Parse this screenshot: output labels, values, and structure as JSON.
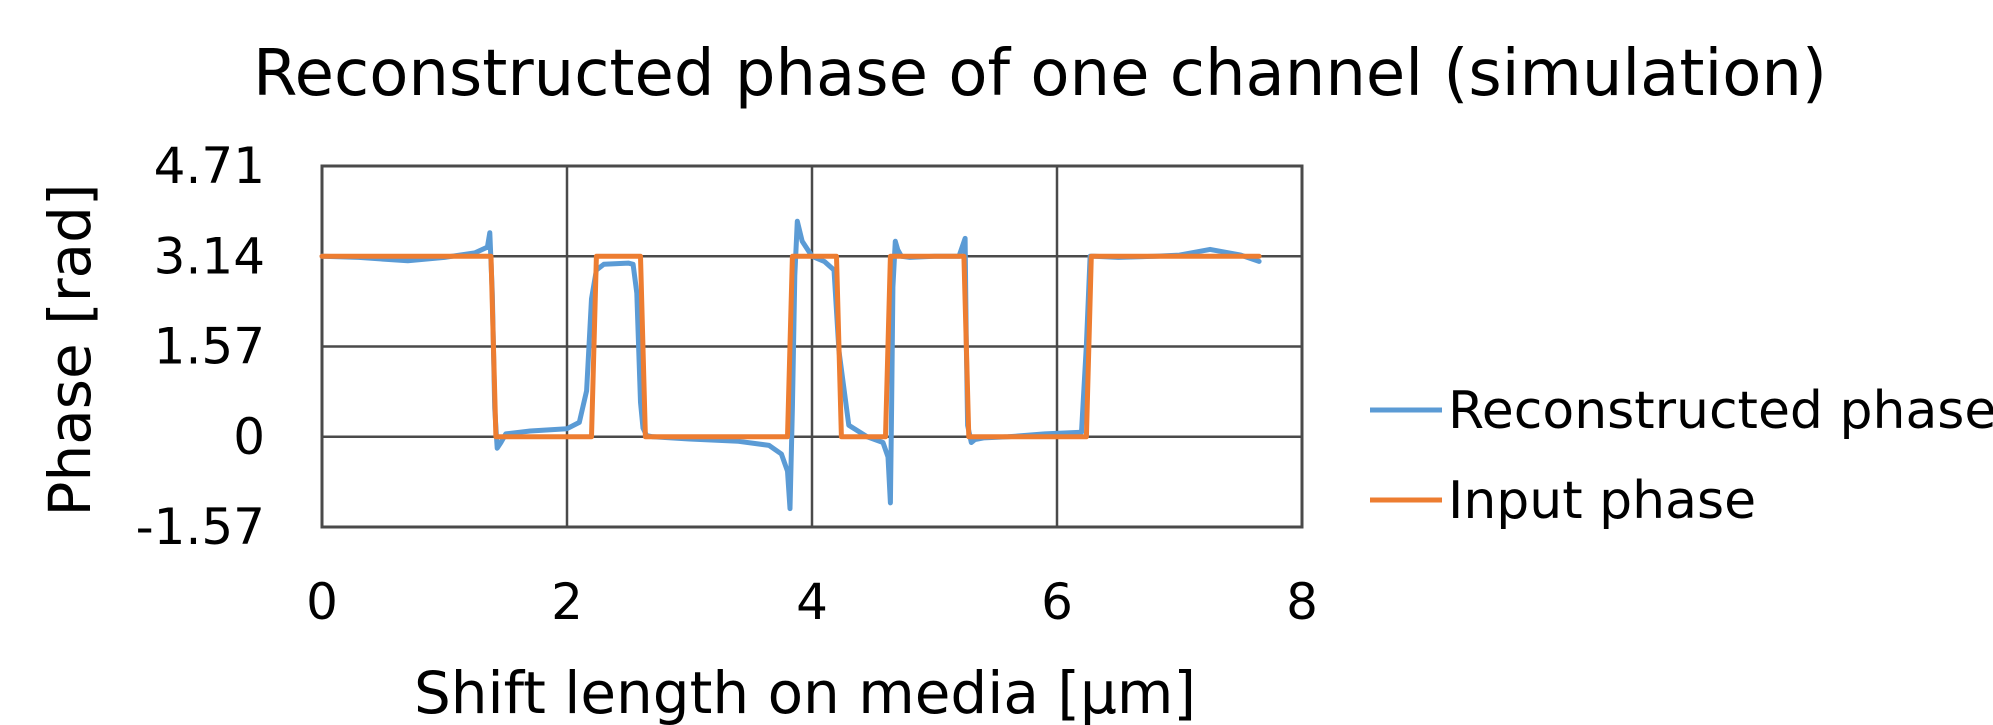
{
  "chart_data": {
    "type": "line",
    "title": "Reconstructed phase of one channel (simulation)",
    "xlabel": "Shift length on media [μm]",
    "ylabel": "Phase [rad]",
    "xlim": [
      0,
      8
    ],
    "ylim": [
      -1.57,
      4.71
    ],
    "x_ticks": [
      "0",
      "2",
      "4",
      "6",
      "8"
    ],
    "y_ticks": [
      "4.71",
      "3.14",
      "1.57",
      "0",
      "-1.57"
    ],
    "grid": true,
    "legend_position": "right",
    "series": [
      {
        "name": "Reconstructed phase",
        "color": "#5b9bd5",
        "x": [
          0,
          0.3,
          0.7,
          1.0,
          1.25,
          1.35,
          1.37,
          1.39,
          1.41,
          1.43,
          1.46,
          1.5,
          1.7,
          2.0,
          2.1,
          2.16,
          2.2,
          2.24,
          2.3,
          2.5,
          2.54,
          2.57,
          2.6,
          2.62,
          2.65,
          2.7,
          3.0,
          3.4,
          3.65,
          3.75,
          3.8,
          3.82,
          3.84,
          3.86,
          3.88,
          3.92,
          4.0,
          4.1,
          4.18,
          4.22,
          4.3,
          4.45,
          4.58,
          4.62,
          4.64,
          4.65,
          4.66,
          4.68,
          4.7,
          4.73,
          4.8,
          5.0,
          5.1,
          5.2,
          5.25,
          5.26,
          5.27,
          5.3,
          5.33,
          5.4,
          5.6,
          5.9,
          6.2,
          6.24,
          6.27,
          6.3,
          6.5,
          6.8,
          7.0,
          7.25,
          7.5,
          7.65
        ],
        "y": [
          3.14,
          3.12,
          3.06,
          3.12,
          3.2,
          3.3,
          3.55,
          2.5,
          0.5,
          -0.2,
          -0.1,
          0.05,
          0.1,
          0.14,
          0.25,
          0.8,
          2.4,
          2.9,
          3.0,
          3.02,
          3.0,
          2.5,
          0.6,
          0.15,
          0.02,
          0.0,
          -0.04,
          -0.08,
          -0.15,
          -0.3,
          -0.6,
          -1.25,
          0.5,
          2.8,
          3.75,
          3.4,
          3.14,
          3.05,
          2.9,
          1.5,
          0.2,
          0.0,
          -0.1,
          -0.35,
          -1.15,
          0.5,
          2.6,
          3.4,
          3.25,
          3.14,
          3.12,
          3.14,
          3.14,
          3.14,
          3.45,
          1.5,
          0.2,
          -0.1,
          -0.05,
          -0.02,
          0.0,
          0.05,
          0.08,
          1.6,
          3.14,
          3.14,
          3.12,
          3.14,
          3.16,
          3.26,
          3.16,
          3.05
        ]
      },
      {
        "name": "Input phase",
        "color": "#ed7d31",
        "x": [
          0,
          1.38,
          1.42,
          2.2,
          2.24,
          2.6,
          2.64,
          3.8,
          3.84,
          4.2,
          4.24,
          4.6,
          4.64,
          5.24,
          5.28,
          6.24,
          6.28,
          7.65
        ],
        "y": [
          3.14,
          3.14,
          0,
          0,
          3.14,
          3.14,
          0,
          0,
          3.14,
          3.14,
          0,
          0,
          3.14,
          3.14,
          0,
          0,
          3.14,
          3.14
        ]
      }
    ]
  }
}
